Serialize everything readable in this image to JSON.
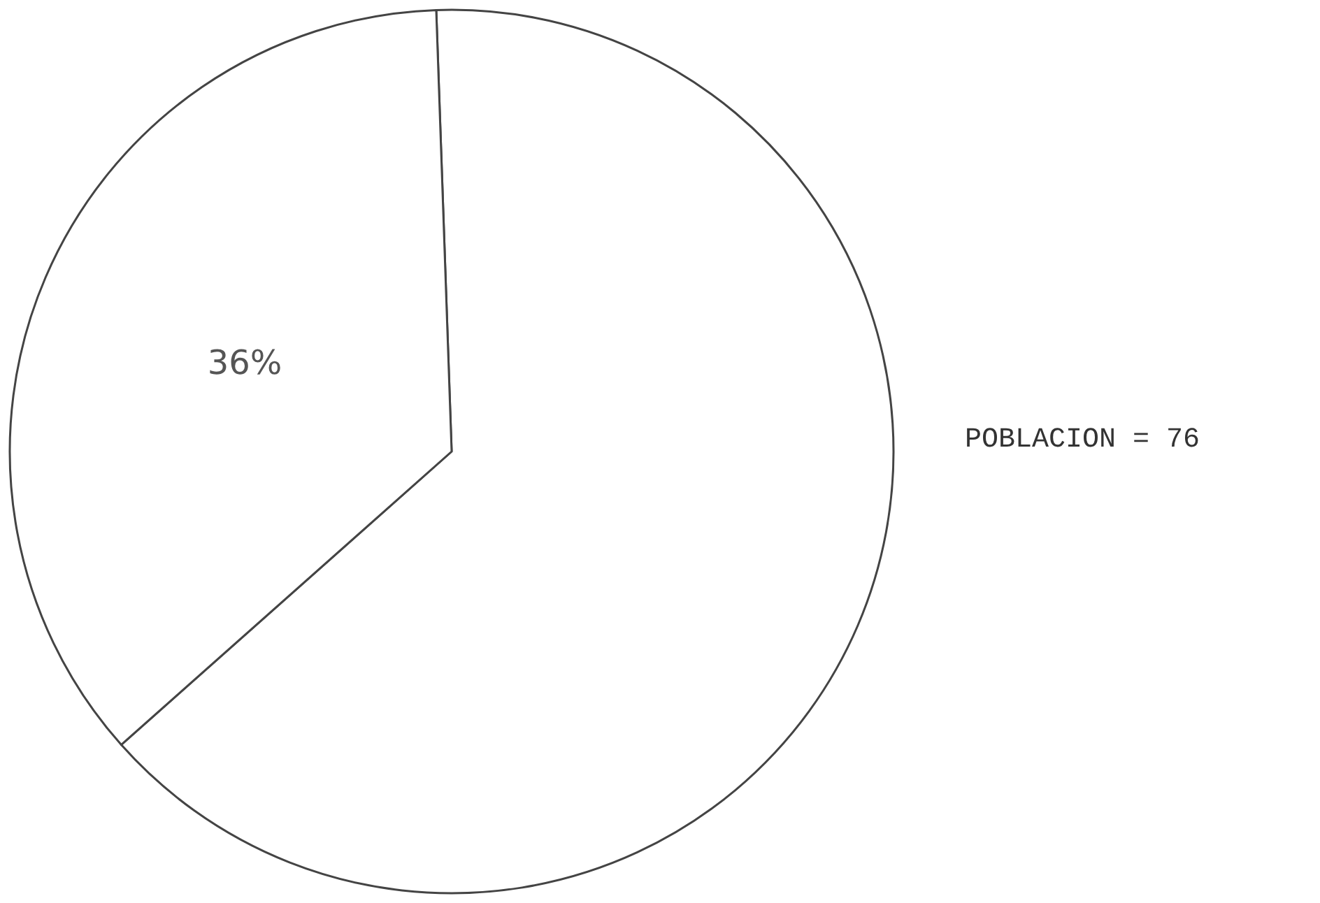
{
  "chart_data": {
    "type": "pie",
    "categories": [
      null,
      null
    ],
    "values": [
      64,
      36
    ],
    "colors": [
      "#ffffff",
      "#ffffff"
    ],
    "value_labels": [
      null,
      "36%"
    ],
    "annotations": [
      "POBLACION = 76"
    ]
  }
}
